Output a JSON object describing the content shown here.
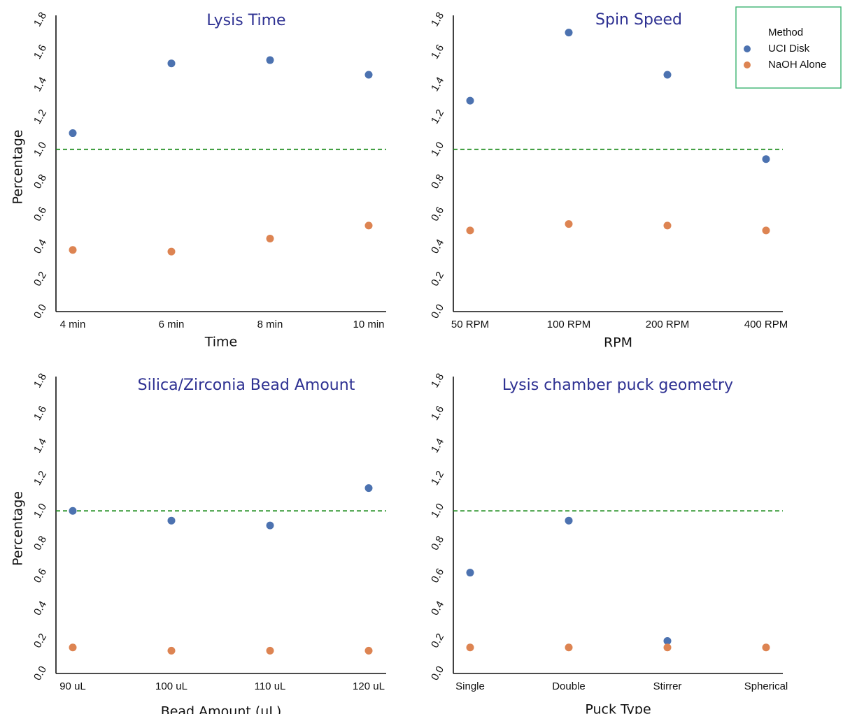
{
  "chart_data": [
    {
      "type": "scatter",
      "title": "Lysis Time",
      "xlabel": "Time",
      "ylabel": "Percentage",
      "categories": [
        "4 min",
        "6 min",
        "8 min",
        "10 min"
      ],
      "ylim": [
        0.0,
        1.8
      ],
      "yticks": [
        "0.0",
        "0.2",
        "0.4",
        "0.6",
        "0.8",
        "1.0",
        "1.2",
        "1.4",
        "1.6",
        "1.8"
      ],
      "reference_line": 1.0,
      "series": [
        {
          "name": "UCI Disk",
          "values": [
            1.1,
            1.53,
            1.55,
            1.46
          ]
        },
        {
          "name": "NaOH Alone",
          "values": [
            0.38,
            0.37,
            0.45,
            0.53
          ]
        }
      ]
    },
    {
      "type": "scatter",
      "title": "Spin Speed",
      "xlabel": "RPM",
      "ylabel": "",
      "categories": [
        "50 RPM",
        "100 RPM",
        "200 RPM",
        "400 RPM"
      ],
      "ylim": [
        0.0,
        1.8
      ],
      "yticks": [
        "0.0",
        "0.2",
        "0.4",
        "0.6",
        "0.8",
        "1.0",
        "1.2",
        "1.4",
        "1.6",
        "1.8"
      ],
      "reference_line": 1.0,
      "series": [
        {
          "name": "UCI Disk",
          "values": [
            1.3,
            1.72,
            1.46,
            0.94
          ]
        },
        {
          "name": "NaOH Alone",
          "values": [
            0.5,
            0.54,
            0.53,
            0.5
          ]
        }
      ]
    },
    {
      "type": "scatter",
      "title": "Silica/Zirconia Bead Amount",
      "xlabel": "Bead Amount (uL)",
      "ylabel": "Percentage",
      "categories": [
        "90 uL",
        "100 uL",
        "110 uL",
        "120 uL"
      ],
      "ylim": [
        0.0,
        1.8
      ],
      "yticks": [
        "0.0",
        "0.2",
        "0.4",
        "0.6",
        "0.8",
        "1.0",
        "1.2",
        "1.4",
        "1.6",
        "1.8"
      ],
      "reference_line": 1.0,
      "series": [
        {
          "name": "UCI Disk",
          "values": [
            1.0,
            0.94,
            0.91,
            1.14
          ]
        },
        {
          "name": "NaOH Alone",
          "values": [
            0.16,
            0.14,
            0.14,
            0.14
          ]
        }
      ]
    },
    {
      "type": "scatter",
      "title": "Lysis chamber puck geometry",
      "xlabel": "Puck Type",
      "ylabel": "",
      "categories": [
        "Single",
        "Double",
        "Stirrer",
        "Spherical"
      ],
      "ylim": [
        0.0,
        1.8
      ],
      "yticks": [
        "0.0",
        "0.2",
        "0.4",
        "0.6",
        "0.8",
        "1.0",
        "1.2",
        "1.4",
        "1.6",
        "1.8"
      ],
      "reference_line": 1.0,
      "series": [
        {
          "name": "UCI Disk",
          "values": [
            0.62,
            0.94,
            0.2,
            null
          ]
        },
        {
          "name": "NaOH Alone",
          "values": [
            0.16,
            0.16,
            0.16,
            0.16
          ]
        }
      ]
    }
  ],
  "legend": {
    "title": "Method",
    "placement": "top-right",
    "items": [
      {
        "label": "UCI Disk",
        "color": "#4c72b0"
      },
      {
        "label": "NaOH Alone",
        "color": "#dd8452"
      }
    ]
  },
  "colors": {
    "title": "#2e3192",
    "reference_line": "#1a8a1a",
    "legend_border": "#3cb371"
  }
}
